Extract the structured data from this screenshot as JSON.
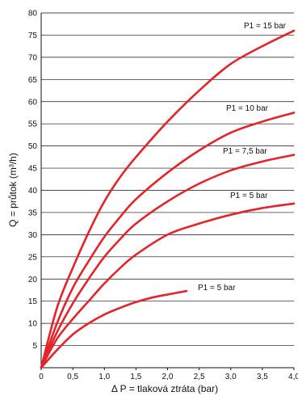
{
  "chart_data": {
    "type": "line",
    "xlabel": "Δ P = tlaková ztráta (bar)",
    "ylabel": "Q = průtok (m³/h)",
    "xlim": [
      0,
      4.0
    ],
    "ylim": [
      0,
      80
    ],
    "x_ticks": [
      0,
      0.5,
      1.0,
      1.5,
      2.0,
      2.5,
      3.0,
      3.5,
      4.0
    ],
    "x_tick_labels": [
      "0",
      "0,5",
      "1,0",
      "1,5",
      "2,0",
      "2,5",
      "3,0",
      "3,5",
      "4,0"
    ],
    "y_ticks": [
      5,
      10,
      15,
      20,
      25,
      30,
      35,
      40,
      45,
      50,
      55,
      60,
      65,
      70,
      75,
      80
    ],
    "grid": "horizontal",
    "color": "#e3252b",
    "series": [
      {
        "name": "P1 = 15 bar",
        "x": [
          0,
          0.25,
          0.5,
          0.75,
          1.0,
          1.25,
          1.5,
          2.0,
          2.5,
          3.0,
          3.5,
          4.0
        ],
        "values": [
          0,
          13.5,
          22.5,
          30.5,
          37.5,
          43,
          47.5,
          55.5,
          62.5,
          68.5,
          72.5,
          76
        ]
      },
      {
        "name": "P1 = 10 bar",
        "x": [
          0,
          0.25,
          0.5,
          0.75,
          1.0,
          1.25,
          1.5,
          2.0,
          2.5,
          3.0,
          3.5,
          4.0
        ],
        "values": [
          0,
          10,
          18,
          24,
          29.5,
          34,
          38,
          44,
          49,
          53,
          55.5,
          57.5
        ]
      },
      {
        "name": "P1 = 7,5 bar",
        "x": [
          0,
          0.25,
          0.5,
          0.75,
          1.0,
          1.25,
          1.5,
          2.0,
          2.5,
          3.0,
          3.5,
          4.0
        ],
        "values": [
          0,
          8,
          14.5,
          20,
          25,
          29,
          32.5,
          37.5,
          41.5,
          44.5,
          46.5,
          48
        ]
      },
      {
        "name": "P1 = 5 bar",
        "x": [
          0,
          0.25,
          0.5,
          0.75,
          1.0,
          1.25,
          1.5,
          2.0,
          2.5,
          3.0,
          3.5,
          4.0
        ],
        "values": [
          0,
          6.5,
          11,
          15,
          19,
          22.5,
          25.5,
          30,
          32.5,
          34.5,
          36,
          37
        ]
      },
      {
        "name": "P1 = 5 bar",
        "x": [
          0,
          0.25,
          0.5,
          0.75,
          1.0,
          1.25,
          1.5,
          1.75,
          2.0,
          2.3
        ],
        "values": [
          0,
          4,
          7.5,
          10,
          12,
          13.5,
          14.8,
          15.8,
          16.5,
          17.3
        ]
      }
    ],
    "labels": [
      {
        "text": "P1 = 15 bar",
        "series": 0
      },
      {
        "text": "P1 = 10 bar",
        "series": 1
      },
      {
        "text": "P1 = 7,5 bar",
        "series": 2
      },
      {
        "text": "P1 = 5 bar",
        "series": 3
      },
      {
        "text": "P1 = 5 bar",
        "series": 4
      }
    ]
  }
}
